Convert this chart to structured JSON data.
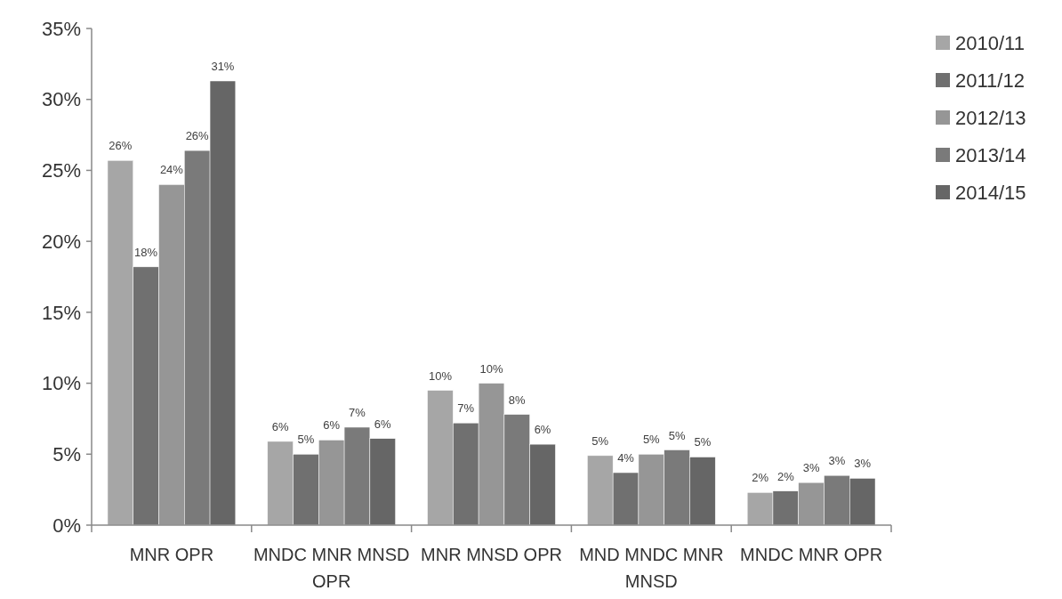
{
  "chart_data": {
    "type": "bar",
    "categories": [
      "MNR OPR",
      "MNDC MNR MNSD OPR",
      "MNR MNSD OPR",
      "MND MNDC MNR MNSD",
      "MNDC MNR OPR"
    ],
    "series": [
      {
        "name": "2010/11",
        "color": "#a6a6a6",
        "values": [
          25.7,
          5.9,
          9.5,
          4.9,
          2.3
        ],
        "value_labels": [
          "26%",
          "6%",
          "10%",
          "5%",
          "2%"
        ]
      },
      {
        "name": "2011/12",
        "color": "#707070",
        "values": [
          18.2,
          5.0,
          7.2,
          3.7,
          2.4
        ],
        "value_labels": [
          "18%",
          "5%",
          "7%",
          "4%",
          "2%"
        ]
      },
      {
        "name": "2012/13",
        "color": "#969696",
        "values": [
          24.0,
          6.0,
          10.0,
          5.0,
          3.0
        ],
        "value_labels": [
          "24%",
          "6%",
          "10%",
          "5%",
          "3%"
        ]
      },
      {
        "name": "2013/14",
        "color": "#7a7a7a",
        "values": [
          26.4,
          6.9,
          7.8,
          5.3,
          3.5
        ],
        "value_labels": [
          "26%",
          "7%",
          "8%",
          "5%",
          "3%"
        ]
      },
      {
        "name": "2014/15",
        "color": "#666666",
        "values": [
          31.3,
          6.1,
          5.7,
          4.8,
          3.3
        ],
        "value_labels": [
          "31%",
          "6%",
          "6%",
          "5%",
          "3%"
        ]
      }
    ],
    "ylim": [
      0,
      35
    ],
    "yticks": [
      {
        "value": 0,
        "label": "0%"
      },
      {
        "value": 5,
        "label": "5%"
      },
      {
        "value": 10,
        "label": "10%"
      },
      {
        "value": 15,
        "label": "15%"
      },
      {
        "value": 20,
        "label": "20%"
      },
      {
        "value": 25,
        "label": "25%"
      },
      {
        "value": 30,
        "label": "30%"
      },
      {
        "value": 35,
        "label": "35%"
      }
    ],
    "grid": false,
    "legend": "top right"
  }
}
